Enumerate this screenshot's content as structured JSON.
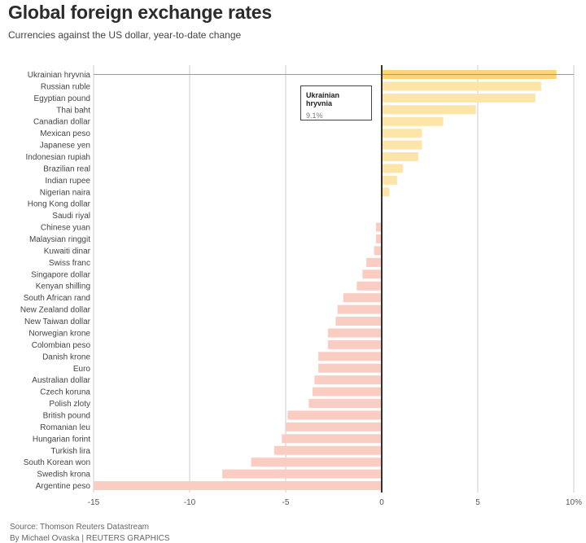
{
  "header": {
    "title": "Global foreign exchange rates",
    "subtitle": "Currencies against the US dollar, year-to-date change"
  },
  "tooltip": {
    "name": "Ukrainian hryvnia",
    "value": "9.1%"
  },
  "footer": {
    "source": "Source: Thomson Reuters Datastream",
    "credit": "By Michael Ovaska | REUTERS GRAPHICS"
  },
  "colors": {
    "positive": "#fde4a8",
    "positive_highlight": "#fdd47a",
    "negative": "#f9cdc1",
    "grid": "#cccccc",
    "zero_line": "#333333"
  },
  "chart_data": {
    "type": "bar",
    "orientation": "horizontal",
    "title": "Global foreign exchange rates",
    "subtitle": "Currencies against the US dollar, year-to-date change",
    "xlabel": "",
    "ylabel": "",
    "xlim": [
      -15,
      10
    ],
    "xticks": [
      -15,
      -10,
      -5,
      0,
      5,
      10
    ],
    "xtick_labels": [
      "-15",
      "-10",
      "-5",
      "0",
      "5",
      "10%"
    ],
    "grid": true,
    "highlighted": "Ukrainian hryvnia",
    "categories": [
      "Ukrainian hryvnia",
      "Russian ruble",
      "Egyptian pound",
      "Thai baht",
      "Canadian dollar",
      "Mexican peso",
      "Japanese yen",
      "Indonesian rupiah",
      "Brazilian real",
      "Indian rupee",
      "Nigerian naira",
      "Hong Kong dollar",
      "Saudi riyal",
      "Chinese yuan",
      "Malaysian ringgit",
      "Kuwaiti dinar",
      "Swiss franc",
      "Singapore dollar",
      "Kenyan shilling",
      "South African rand",
      "New Zealand dollar",
      "New Taiwan dollar",
      "Norwegian krone",
      "Colombian peso",
      "Danish krone",
      "Euro",
      "Australian dollar",
      "Czech koruna",
      "Polish zloty",
      "British pound",
      "Romanian leu",
      "Hungarian forint",
      "Turkish lira",
      "South Korean won",
      "Swedish krona",
      "Argentine peso"
    ],
    "values": [
      9.1,
      8.3,
      8.0,
      4.9,
      3.2,
      2.1,
      2.1,
      1.9,
      1.1,
      0.8,
      0.4,
      0.0,
      0.0,
      -0.3,
      -0.3,
      -0.4,
      -0.8,
      -1.0,
      -1.3,
      -2.0,
      -2.3,
      -2.4,
      -2.8,
      -2.8,
      -3.3,
      -3.3,
      -3.5,
      -3.6,
      -3.8,
      -4.9,
      -5.0,
      -5.2,
      -5.6,
      -6.8,
      -8.3,
      -15.0
    ]
  }
}
